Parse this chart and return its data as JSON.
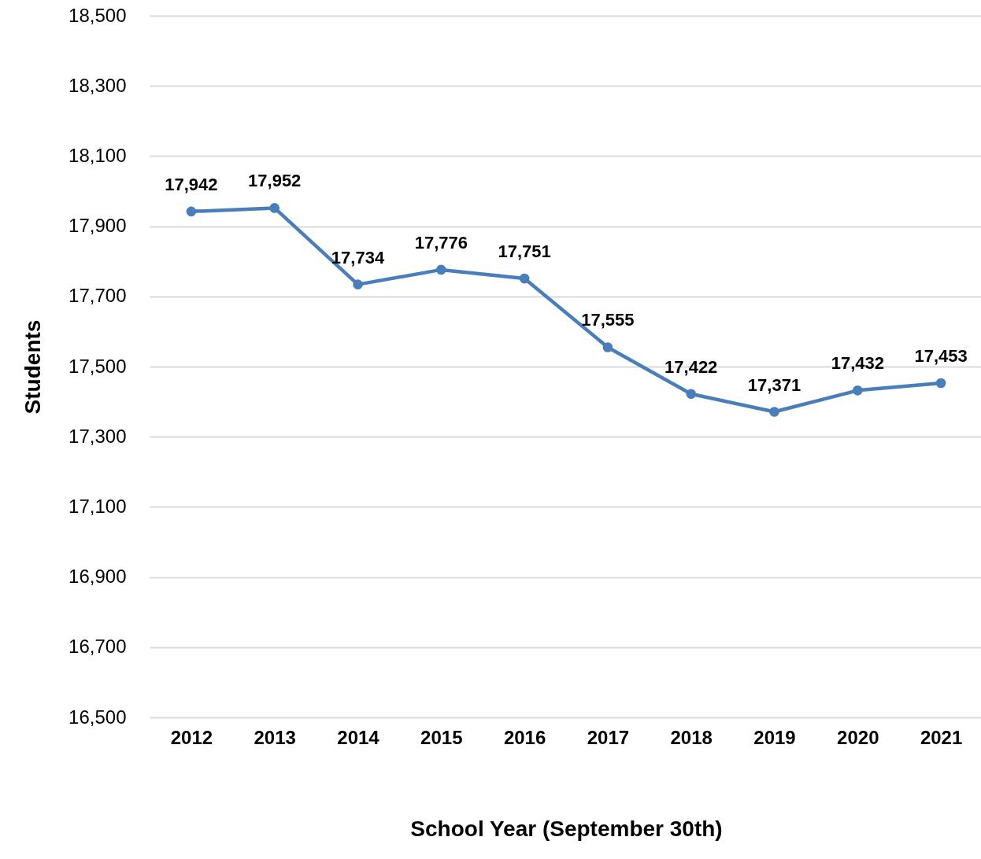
{
  "chart_data": {
    "type": "line",
    "xlabel": "School Year (September 30th)",
    "ylabel": "Students",
    "categories": [
      "2012",
      "2013",
      "2014",
      "2015",
      "2016",
      "2017",
      "2018",
      "2019",
      "2020",
      "2021"
    ],
    "series": [
      {
        "color": "#4a7ebb",
        "values": [
          17942,
          17952,
          17734,
          17776,
          17751,
          17555,
          17422,
          17371,
          17432,
          17453
        ],
        "value_labels": [
          "17,942",
          "17,952",
          "17,734",
          "17,776",
          "17,751",
          "17,555",
          "17,422",
          "17,371",
          "17,432",
          "17,453"
        ]
      }
    ],
    "ylim": [
      16500,
      18500
    ],
    "yticks": [
      {
        "value": 16500,
        "label": "16,500"
      },
      {
        "value": 16700,
        "label": "16,700"
      },
      {
        "value": 16900,
        "label": "16,900"
      },
      {
        "value": 17100,
        "label": "17,100"
      },
      {
        "value": 17300,
        "label": "17,300"
      },
      {
        "value": 17500,
        "label": "17,500"
      },
      {
        "value": 17700,
        "label": "17,700"
      },
      {
        "value": 17900,
        "label": "17,900"
      },
      {
        "value": 18100,
        "label": "18,100"
      },
      {
        "value": 18300,
        "label": "18,300"
      },
      {
        "value": 18500,
        "label": "18,500"
      }
    ],
    "grid": "y",
    "marker": "circle",
    "line_style": "solid"
  }
}
